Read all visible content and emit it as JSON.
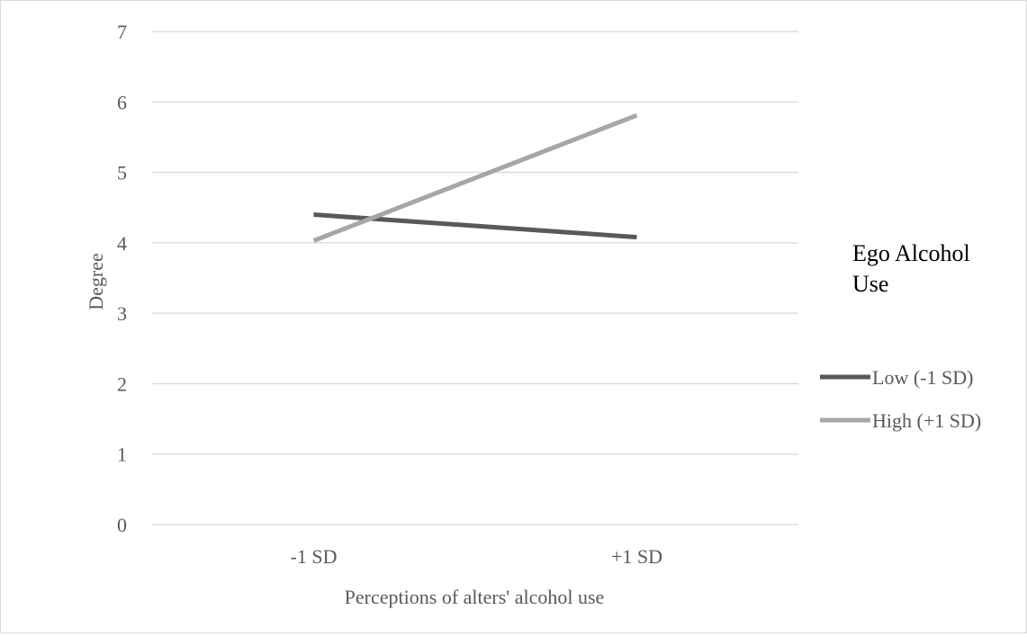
{
  "chart_data": {
    "type": "line",
    "categories": [
      "-1 SD",
      "+1 SD"
    ],
    "series": [
      {
        "name": "Low (-1 SD)",
        "values": [
          4.4,
          4.08
        ],
        "color": "#595959"
      },
      {
        "name": "High (+1 SD)",
        "values": [
          4.03,
          5.81
        ],
        "color": "#a6a6a6"
      }
    ],
    "xlabel": "Perceptions of alters' alcohol use",
    "ylabel": "Degree",
    "ylim": [
      0,
      7
    ],
    "yticks": [
      "0",
      "1",
      "2",
      "3",
      "4",
      "5",
      "6",
      "7"
    ],
    "grid": true,
    "legend": {
      "title_lines": [
        "Ego Alcohol",
        "Use"
      ],
      "placement": "right"
    }
  }
}
